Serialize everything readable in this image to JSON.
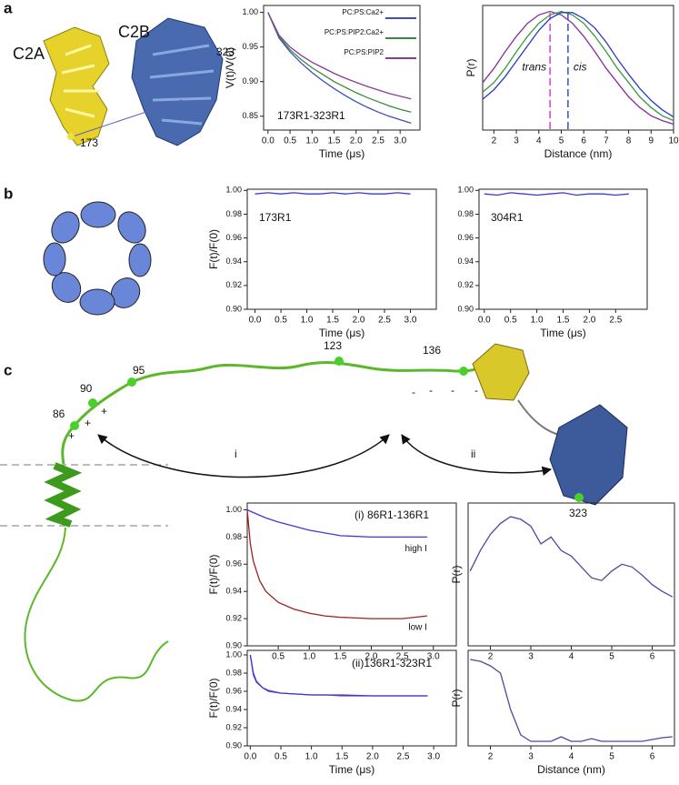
{
  "panels": [
    "a",
    "b",
    "c"
  ],
  "annotations": {
    "c2a": "C2A",
    "c2b": "C2B",
    "a_323": "323",
    "a_173": "173",
    "c_86": "86",
    "c_90": "90",
    "c_95": "95",
    "c_123": "123",
    "c_136": "136",
    "c_323": "323",
    "arrow_i": "i",
    "arrow_ii": "ii",
    "plus": "+",
    "minus": "-"
  },
  "chart_data": [
    {
      "type": "line",
      "title": "173R1-323R1",
      "xlabel": "Time (μs)",
      "ylabel": "V(t)/V(0)",
      "legend": "upper right",
      "x": [
        0,
        0.25,
        0.5,
        0.75,
        1,
        1.25,
        1.5,
        1.75,
        2,
        2.25,
        2.5,
        2.75,
        3,
        3.25
      ],
      "xlim": [
        -0.1,
        3.45
      ],
      "ylim": [
        0.83,
        1.01
      ],
      "xticks": [
        {
          "value": 0,
          "label": "0.0"
        },
        0.5,
        {
          "value": 1,
          "label": "1.0"
        },
        1.5,
        {
          "value": 2,
          "label": "2.0"
        },
        2.5,
        {
          "value": 3,
          "label": "3.0"
        }
      ],
      "yticks": [
        0.85,
        {
          "value": 0.9,
          "label": "0.90"
        },
        0.95,
        {
          "value": 1,
          "label": "1.00"
        }
      ],
      "series": [
        {
          "name": "PC:PS:Ca2+",
          "color": "#3b4fb8",
          "values": [
            1.0,
            0.963,
            0.943,
            0.927,
            0.913,
            0.901,
            0.89,
            0.88,
            0.871,
            0.863,
            0.856,
            0.85,
            0.845,
            0.84
          ]
        },
        {
          "name": "PC:PS:PIP2:Ca2+",
          "color": "#3a8a3a",
          "values": [
            1.0,
            0.965,
            0.946,
            0.932,
            0.92,
            0.91,
            0.9,
            0.892,
            0.884,
            0.877,
            0.871,
            0.865,
            0.86,
            0.856
          ]
        },
        {
          "name": "PC:PS:PIP2",
          "color": "#8a3a9a",
          "values": [
            1.0,
            0.967,
            0.95,
            0.938,
            0.928,
            0.92,
            0.912,
            0.905,
            0.899,
            0.893,
            0.888,
            0.883,
            0.879,
            0.875
          ]
        }
      ]
    },
    {
      "type": "line",
      "xlabel": "Distance (nm)",
      "ylabel": "P(r)",
      "x": [
        1.5,
        2,
        2.5,
        3,
        3.5,
        4,
        4.5,
        5,
        5.5,
        6,
        6.5,
        7,
        7.5,
        8,
        8.5,
        9,
        9.5,
        10
      ],
      "xlim": [
        1.5,
        10
      ],
      "ylim": [
        0,
        1.05
      ],
      "xticks": [
        2,
        3,
        4,
        5,
        6,
        7,
        8,
        9,
        10
      ],
      "markers": [
        {
          "label": "trans",
          "x": 4.5,
          "color": "#d040d0"
        },
        {
          "label": "cis",
          "x": 5.3,
          "color": "#3b4fb8"
        }
      ],
      "series": [
        {
          "color": "#8a2a9a",
          "values": [
            0.4,
            0.52,
            0.66,
            0.79,
            0.9,
            0.97,
            1.0,
            0.97,
            0.9,
            0.79,
            0.66,
            0.52,
            0.4,
            0.28,
            0.19,
            0.12,
            0.08,
            0.05
          ]
        },
        {
          "color": "#3a9a3a",
          "values": [
            0.32,
            0.4,
            0.52,
            0.66,
            0.79,
            0.9,
            0.97,
            1.0,
            0.97,
            0.9,
            0.79,
            0.66,
            0.52,
            0.4,
            0.28,
            0.19,
            0.12,
            0.08
          ]
        },
        {
          "color": "#2a3ac8",
          "values": [
            0.26,
            0.34,
            0.45,
            0.58,
            0.71,
            0.84,
            0.94,
            0.99,
            0.99,
            0.94,
            0.86,
            0.74,
            0.6,
            0.47,
            0.35,
            0.25,
            0.17,
            0.11
          ]
        }
      ]
    },
    {
      "type": "line",
      "title": "173R1",
      "xlabel": "Time (μs)",
      "ylabel": "F(t)/F(0)",
      "x": [
        0,
        0.25,
        0.5,
        0.75,
        1,
        1.25,
        1.5,
        1.75,
        2,
        2.25,
        2.5,
        2.75,
        3
      ],
      "xlim": [
        -0.15,
        3.5
      ],
      "ylim": [
        0.9,
        1.001
      ],
      "xticks": [
        {
          "value": 0,
          "label": "0.0"
        },
        0.5,
        {
          "value": 1,
          "label": "1.0"
        },
        1.5,
        {
          "value": 2,
          "label": "2.0"
        },
        2.5,
        {
          "value": 3,
          "label": "3.0"
        }
      ],
      "yticks": [
        {
          "value": 0.9,
          "label": "0.90"
        },
        0.92,
        0.94,
        0.96,
        0.98,
        {
          "value": 1,
          "label": "1.00"
        }
      ],
      "series": [
        {
          "color": "#3a3ad8",
          "values": [
            0.997,
            0.998,
            0.997,
            0.998,
            0.997,
            0.997,
            0.998,
            0.997,
            0.998,
            0.997,
            0.997,
            0.998,
            0.997
          ]
        }
      ]
    },
    {
      "type": "line",
      "title": "304R1",
      "xlabel": "Time (μs)",
      "x": [
        0,
        0.25,
        0.5,
        0.75,
        1,
        1.25,
        1.5,
        1.75,
        2,
        2.25,
        2.5,
        2.75
      ],
      "xlim": [
        -0.1,
        3.1
      ],
      "ylim": [
        0.9,
        1.001
      ],
      "xticks": [
        {
          "value": 0,
          "label": "0.0"
        },
        0.5,
        {
          "value": 1,
          "label": "1.0"
        },
        1.5,
        {
          "value": 2,
          "label": "2.0"
        },
        2.5
      ],
      "yticks": [
        {
          "value": 0.9,
          "label": "0.90"
        },
        0.92,
        0.94,
        0.96,
        0.98,
        {
          "value": 1,
          "label": "1.00"
        }
      ],
      "series": [
        {
          "color": "#3a3ad8",
          "values": [
            0.997,
            0.996,
            0.998,
            0.997,
            0.996,
            0.997,
            0.998,
            0.996,
            0.997,
            0.997,
            0.996,
            0.997
          ]
        }
      ]
    },
    {
      "type": "line",
      "title": "(i) 86R1-136R1",
      "ylabel": "F(t)/F(0)",
      "x": [
        0,
        0.05,
        0.1,
        0.2,
        0.3,
        0.5,
        0.75,
        1,
        1.25,
        1.5,
        2,
        2.5,
        2.9
      ],
      "xlim": [
        0,
        3.37
      ],
      "ylim": [
        0.9,
        1.005
      ],
      "xticks": [
        0.5,
        {
          "value": 1,
          "label": "1.0"
        },
        1.5,
        {
          "value": 2,
          "label": "2.0"
        },
        2.5,
        {
          "value": 3,
          "label": "3.0"
        }
      ],
      "yticks": [
        {
          "value": 0.9,
          "label": "0.90"
        },
        0.92,
        0.94,
        0.96,
        0.98,
        {
          "value": 1,
          "label": "1.00"
        }
      ],
      "series": [
        {
          "name": "high I",
          "color": "#3a3ad8",
          "values": [
            1.0,
            0.999,
            0.998,
            0.996,
            0.994,
            0.991,
            0.988,
            0.985,
            0.983,
            0.981,
            0.98,
            0.98,
            0.98
          ]
        },
        {
          "name": "low I",
          "color": "#a02020",
          "values": [
            1.0,
            0.975,
            0.962,
            0.948,
            0.94,
            0.932,
            0.927,
            0.924,
            0.922,
            0.921,
            0.92,
            0.92,
            0.922
          ]
        }
      ]
    },
    {
      "type": "line",
      "title": "(ii)136R1-323R1",
      "xlabel": "Time (μs)",
      "ylabel": "F(t)/F(0)",
      "x": [
        0,
        0.05,
        0.1,
        0.2,
        0.3,
        0.5,
        0.75,
        1,
        1.25,
        1.5,
        2,
        2.5,
        2.9
      ],
      "xlim": [
        -0.05,
        3.37
      ],
      "ylim": [
        0.9,
        1.005
      ],
      "xticks": [
        {
          "value": 0,
          "label": "0.0"
        },
        0.5,
        {
          "value": 1,
          "label": "1.0"
        },
        1.5,
        {
          "value": 2,
          "label": "2.0"
        },
        2.5,
        {
          "value": 3,
          "label": "3.0"
        }
      ],
      "yticks": [
        {
          "value": 0.9,
          "label": "0.90"
        },
        0.92,
        0.94,
        0.96,
        0.98,
        {
          "value": 1,
          "label": "1.00"
        }
      ],
      "series": [
        {
          "color": "#8a3ab0",
          "values": [
            1.0,
            0.978,
            0.97,
            0.964,
            0.961,
            0.958,
            0.957,
            0.956,
            0.956,
            0.955,
            0.955,
            0.955,
            0.955
          ]
        },
        {
          "color": "#3a3ad8",
          "values": [
            1.0,
            0.98,
            0.971,
            0.964,
            0.96,
            0.958,
            0.957,
            0.956,
            0.956,
            0.956,
            0.955,
            0.955,
            0.955
          ]
        }
      ]
    },
    {
      "type": "line",
      "ylabel": "P(r)",
      "x": [
        1.5,
        1.75,
        2,
        2.25,
        2.5,
        2.75,
        3,
        3.25,
        3.5,
        3.75,
        4,
        4.25,
        4.5,
        4.75,
        5,
        5.25,
        5.5,
        5.75,
        6,
        6.25,
        6.5
      ],
      "xlim": [
        1.45,
        6.55
      ],
      "ylim": [
        0,
        1.05
      ],
      "xticks": [
        2,
        3,
        4,
        5,
        6
      ],
      "series": [
        {
          "color": "#4a4aa0",
          "values": [
            0.55,
            0.7,
            0.82,
            0.9,
            0.95,
            0.93,
            0.88,
            0.75,
            0.8,
            0.7,
            0.66,
            0.58,
            0.5,
            0.48,
            0.55,
            0.6,
            0.58,
            0.52,
            0.45,
            0.4,
            0.36
          ]
        }
      ]
    },
    {
      "type": "line",
      "xlabel": "Distance (nm)",
      "ylabel": "P(r)",
      "x": [
        1.5,
        1.75,
        2,
        2.25,
        2.5,
        2.75,
        3,
        3.25,
        3.5,
        3.75,
        4,
        4.25,
        4.5,
        4.75,
        5,
        5.25,
        5.5,
        5.75,
        6,
        6.25,
        6.5
      ],
      "xlim": [
        1.45,
        6.55
      ],
      "ylim": [
        0,
        1.05
      ],
      "xticks": [
        2,
        3,
        4,
        5,
        6
      ],
      "series": [
        {
          "color": "#4a4aa0",
          "values": [
            0.95,
            0.93,
            0.88,
            0.8,
            0.4,
            0.12,
            0.05,
            0.05,
            0.05,
            0.1,
            0.05,
            0.05,
            0.08,
            0.05,
            0.05,
            0.05,
            0.05,
            0.05,
            0.07,
            0.09,
            0.1
          ]
        }
      ]
    }
  ]
}
